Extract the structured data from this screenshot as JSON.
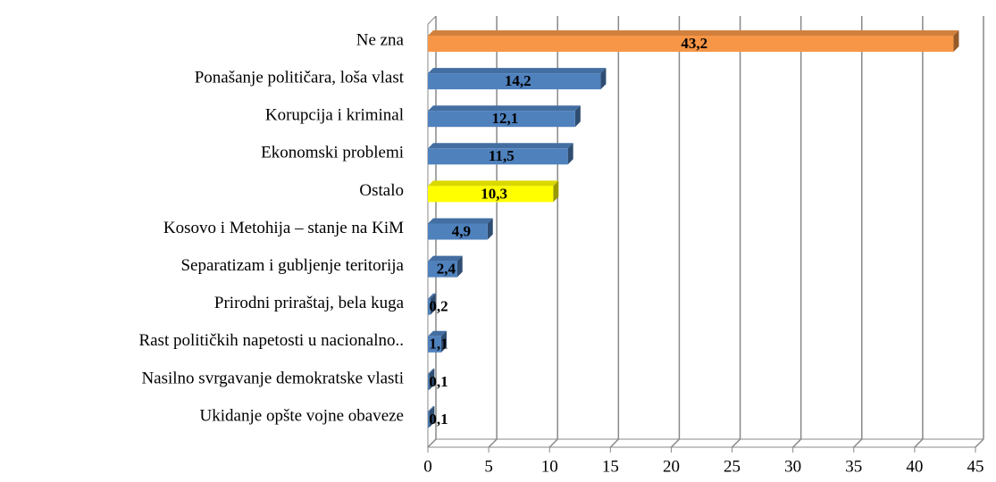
{
  "chart_data": {
    "type": "bar",
    "orientation": "horizontal",
    "categories": [
      "Ne zna",
      "Ponašanje političara, loša vlast",
      "Korupcija i kriminal",
      "Ekonomski problemi",
      "Ostalo",
      "Kosovo i Metohija – stanje na KiM",
      "Separatizam i gubljenje teritorija",
      "Prirodni priraštaj, bela kuga",
      "Rast političkih napetosti u nacionalno..",
      "Nasilno svrgavanje demokratske vlasti",
      "Ukidanje opšte vojne obaveze"
    ],
    "values": [
      43.2,
      14.2,
      12.1,
      11.5,
      10.3,
      4.9,
      2.4,
      0.2,
      1.1,
      0.1,
      0.1
    ],
    "value_labels": [
      "43,2",
      "14,2",
      "12,1",
      "11,5",
      "10,3",
      "4,9",
      "2,4",
      "0,2",
      "1,1",
      "0,1",
      "0,1"
    ],
    "colors": [
      "#f79646",
      "#4f81bd",
      "#4f81bd",
      "#4f81bd",
      "#ffff00",
      "#4f81bd",
      "#4f81bd",
      "#4f81bd",
      "#4f81bd",
      "#4f81bd",
      "#4f81bd"
    ],
    "xlim": [
      0,
      45
    ],
    "xticks": [
      0,
      5,
      10,
      15,
      20,
      25,
      30,
      35,
      40,
      45
    ],
    "grid": true
  }
}
